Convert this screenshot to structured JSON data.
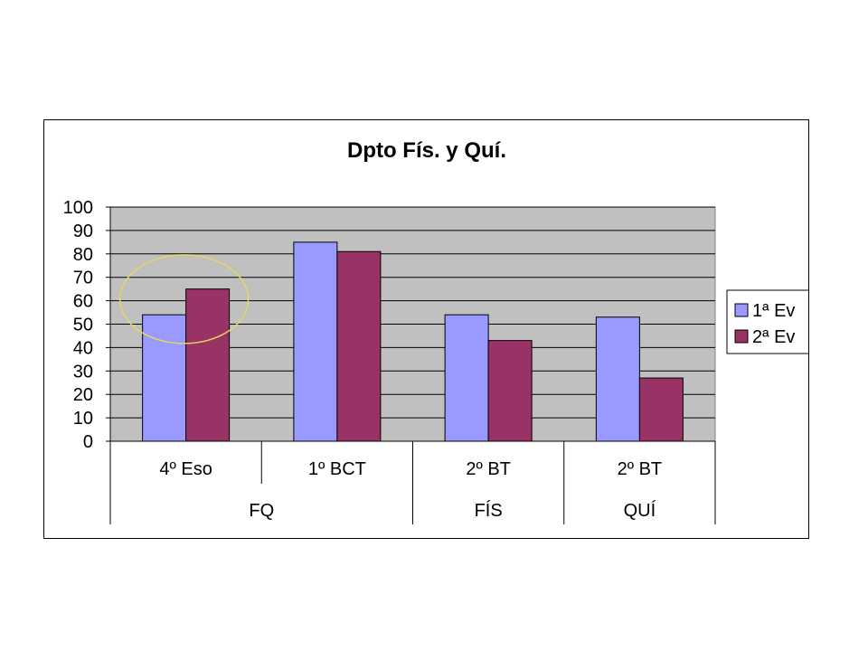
{
  "chart_data": {
    "type": "bar",
    "title": "Dpto Fís. y Quí.",
    "xlabel": "",
    "ylabel": "",
    "ylim": [
      0,
      100
    ],
    "yticks": [
      0,
      10,
      20,
      30,
      40,
      50,
      60,
      70,
      80,
      90,
      100
    ],
    "grid": true,
    "legend_position": "right",
    "categories": [
      "4º Eso",
      "1º BCT",
      "2º BT",
      "2º BT"
    ],
    "groups": [
      {
        "label": "FQ",
        "span": 2
      },
      {
        "label": "FÍS",
        "span": 1
      },
      {
        "label": "QUÍ",
        "span": 1
      }
    ],
    "series": [
      {
        "name": "1ª Ev",
        "color": "#9999FF",
        "values": [
          54,
          85,
          54,
          53
        ]
      },
      {
        "name": "2ª Ev",
        "color": "#993366",
        "values": [
          65,
          81,
          43,
          27
        ]
      }
    ],
    "plot_background": "#C0C0C0",
    "annotation": {
      "type": "ellipse",
      "color": "#E6D85C",
      "highlights_category": "4º Eso"
    }
  }
}
